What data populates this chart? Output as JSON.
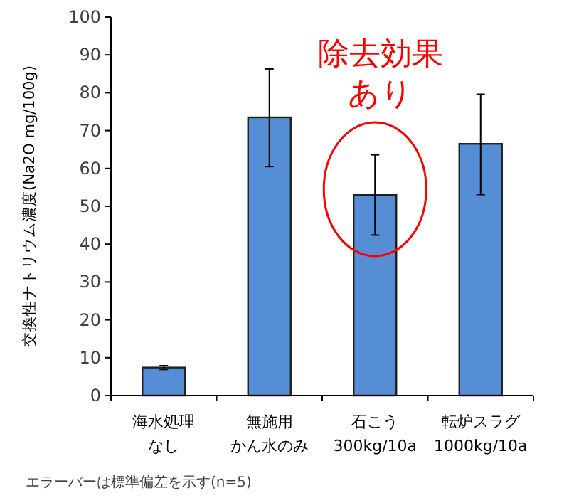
{
  "chart_data": {
    "type": "bar",
    "ylabel": "交換性ナトリウム濃度(Na2O mg/100g)",
    "categories": [
      "海水処理なし",
      "無施用かん水のみ",
      "石こう 300kg/10a",
      "転炉スラグ 1000kg/10a"
    ],
    "values": [
      7.4,
      73.5,
      53.0,
      66.5
    ],
    "errors": [
      0.5,
      [
        60.5,
        86.3
      ],
      [
        42.4,
        63.6
      ],
      [
        53.1,
        79.6
      ]
    ],
    "color": "#558ed5",
    "ylim": [
      0,
      100
    ],
    "yticks": [
      0,
      10,
      20,
      30,
      40,
      50,
      60,
      70,
      80,
      90,
      100
    ],
    "grid": false,
    "annotations": [
      {
        "text": "除去効果あり",
        "x": "石こう 300kg/10a",
        "y": 53.0
      },
      "エラーバーは標準偏差を示す(n=5)"
    ]
  }
}
